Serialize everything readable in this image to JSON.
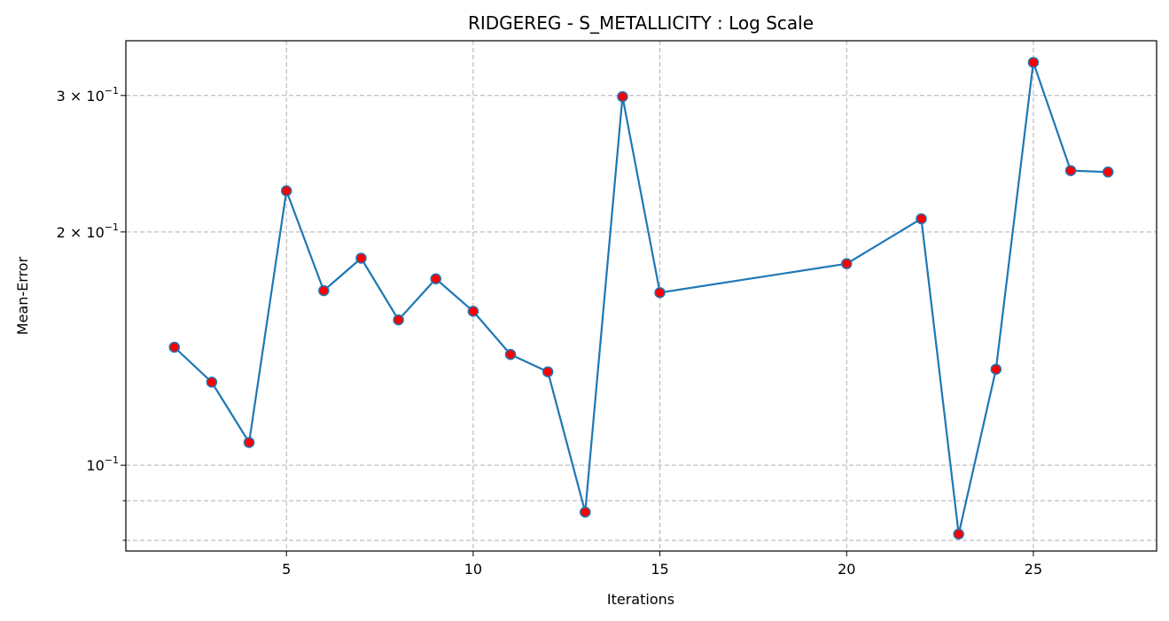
{
  "chart_data": {
    "type": "line",
    "title": "RIDGEREG - S_METALLICITY : Log Scale",
    "xlabel": "Iterations",
    "ylabel": "Mean-Error",
    "yscale": "log",
    "xlim": [
      0.7,
      28.3
    ],
    "ylim": [
      0.0775,
      0.353
    ],
    "grid": true,
    "x": [
      2,
      3,
      4,
      5,
      6,
      7,
      8,
      9,
      10,
      11,
      12,
      13,
      14,
      15,
      20,
      22,
      23,
      24,
      25,
      26,
      27
    ],
    "series": [
      {
        "values": [
          0.142,
          0.128,
          0.107,
          0.226,
          0.168,
          0.185,
          0.154,
          0.174,
          0.158,
          0.139,
          0.132,
          0.087,
          0.299,
          0.167,
          0.182,
          0.208,
          0.0815,
          0.133,
          0.331,
          0.24,
          0.239
        ],
        "line_color": "#1f77b4",
        "marker_color": "#ff0000"
      }
    ],
    "x_ticks": [
      5,
      10,
      15,
      20,
      25
    ],
    "x_tick_labels": [
      "5",
      "10",
      "15",
      "20",
      "25"
    ],
    "y_major_ticks": [
      0.1,
      0.2,
      0.3
    ],
    "y_tick_labels": [
      "10",
      "2 × 10",
      "3 × 10"
    ],
    "y_tick_exponent": "−1",
    "y_minor_ticks": [
      0.08,
      0.09
    ]
  }
}
